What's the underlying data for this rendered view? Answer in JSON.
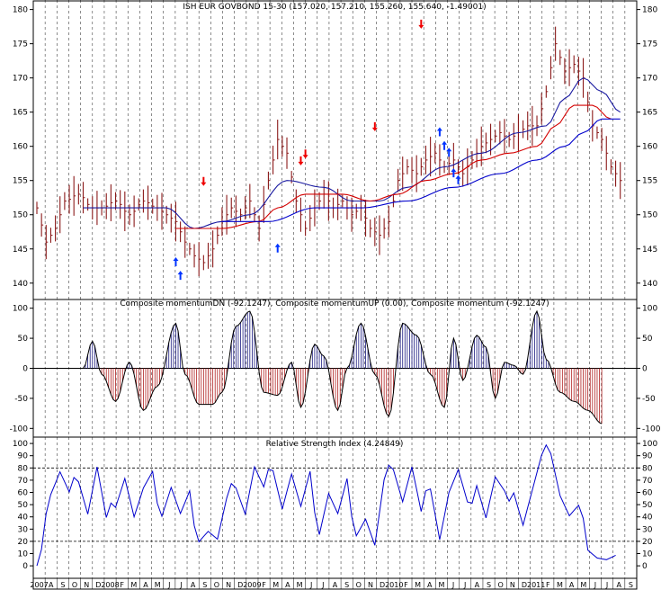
{
  "colors": {
    "background": "#ffffff",
    "frame": "#000000",
    "grid": "#000000",
    "price_bar": "#8b1a1a",
    "ma_fast": "#d40000",
    "ma_slow": "#1a1aa0",
    "ma_lower": "#0000cc",
    "momentum_up": "#1a1a80",
    "momentum_down": "#b02020",
    "rsi": "#0000cc",
    "signal_up": "#0033ff",
    "signal_down": "#ee0000"
  },
  "x_axis": {
    "labels": [
      "2007",
      "A",
      "S",
      "O",
      "N",
      "D",
      "2008",
      "F",
      "M",
      "A",
      "M",
      "J",
      "J",
      "A",
      "S",
      "O",
      "N",
      "D",
      "2009",
      "F",
      "M",
      "A",
      "M",
      "J",
      "J",
      "A",
      "S",
      "O",
      "N",
      "D",
      "2010",
      "F",
      "M",
      "A",
      "M",
      "J",
      "J",
      "A",
      "S",
      "O",
      "N",
      "D",
      "2011",
      "F",
      "M",
      "A",
      "M",
      "J",
      "J",
      "A",
      "S"
    ]
  },
  "chart_data": [
    {
      "id": "price",
      "type": "bar",
      "title": "ISH EUR GOVBOND 15-30 (157.020, 157.210, 155.260, 155.640, -1.49001)",
      "ylim": [
        138,
        181
      ],
      "yticks": [
        140,
        145,
        150,
        155,
        160,
        165,
        170,
        175,
        180
      ],
      "ytick_labels": [
        "140",
        "145",
        "150",
        "155",
        "160",
        "165",
        "170",
        "175",
        "180"
      ],
      "anchors": {
        "close": [
          [
            0,
            151
          ],
          [
            2,
            146
          ],
          [
            4,
            148
          ],
          [
            6,
            152
          ],
          [
            9,
            153
          ],
          [
            12,
            151
          ],
          [
            14,
            151
          ],
          [
            17,
            152
          ],
          [
            20,
            150
          ],
          [
            23,
            152
          ],
          [
            26,
            151
          ],
          [
            28,
            150
          ],
          [
            30,
            149
          ],
          [
            32,
            146
          ],
          [
            34,
            144
          ],
          [
            36,
            143
          ],
          [
            38,
            145
          ],
          [
            40,
            149
          ],
          [
            42,
            151
          ],
          [
            44,
            150
          ],
          [
            46,
            152
          ],
          [
            48,
            148
          ],
          [
            50,
            155
          ],
          [
            52,
            161
          ],
          [
            54,
            159
          ],
          [
            56,
            152
          ],
          [
            58,
            148
          ],
          [
            60,
            151
          ],
          [
            62,
            153
          ],
          [
            64,
            151
          ],
          [
            66,
            152
          ],
          [
            68,
            150
          ],
          [
            70,
            151
          ],
          [
            72,
            148
          ],
          [
            74,
            147
          ],
          [
            76,
            149
          ],
          [
            78,
            155
          ],
          [
            80,
            157
          ],
          [
            82,
            156
          ],
          [
            84,
            158
          ],
          [
            86,
            159
          ],
          [
            88,
            157
          ],
          [
            90,
            158
          ],
          [
            92,
            156
          ],
          [
            94,
            158
          ],
          [
            96,
            160
          ],
          [
            98,
            161
          ],
          [
            100,
            162
          ],
          [
            102,
            161
          ],
          [
            104,
            162
          ],
          [
            106,
            163
          ],
          [
            108,
            163
          ],
          [
            110,
            168
          ],
          [
            112,
            175
          ],
          [
            114,
            171
          ],
          [
            116,
            172
          ],
          [
            118,
            170
          ],
          [
            120,
            163
          ],
          [
            122,
            161
          ],
          [
            124,
            157
          ],
          [
            126,
            155
          ]
        ]
      },
      "ma_fast": [
        [
          30,
          148
        ],
        [
          40,
          148
        ],
        [
          48,
          149
        ],
        [
          52,
          151
        ],
        [
          58,
          153
        ],
        [
          66,
          153
        ],
        [
          72,
          152
        ],
        [
          78,
          153
        ],
        [
          84,
          155
        ],
        [
          90,
          156
        ],
        [
          96,
          158
        ],
        [
          102,
          159
        ],
        [
          108,
          160
        ],
        [
          112,
          163
        ],
        [
          116,
          166
        ],
        [
          120,
          166
        ],
        [
          124,
          164
        ]
      ],
      "ma_slow": [
        [
          10,
          151
        ],
        [
          20,
          151
        ],
        [
          28,
          151
        ],
        [
          34,
          148
        ],
        [
          40,
          149
        ],
        [
          46,
          150
        ],
        [
          54,
          155
        ],
        [
          62,
          154
        ],
        [
          68,
          152
        ],
        [
          74,
          152
        ],
        [
          80,
          154
        ],
        [
          88,
          157
        ],
        [
          96,
          159
        ],
        [
          104,
          162
        ],
        [
          110,
          163
        ],
        [
          114,
          167
        ],
        [
          118,
          170
        ],
        [
          122,
          168
        ],
        [
          126,
          165
        ]
      ],
      "ma_lower": [
        [
          40,
          149
        ],
        [
          50,
          149
        ],
        [
          60,
          151
        ],
        [
          70,
          151
        ],
        [
          80,
          152
        ],
        [
          90,
          154
        ],
        [
          100,
          156
        ],
        [
          108,
          158
        ],
        [
          114,
          160
        ],
        [
          118,
          162
        ],
        [
          122,
          164
        ],
        [
          126,
          164
        ]
      ],
      "signals_up": [
        [
          30,
          143
        ],
        [
          31,
          141
        ],
        [
          52,
          145
        ],
        [
          87,
          162
        ],
        [
          88,
          160
        ],
        [
          89,
          159
        ],
        [
          90,
          156
        ],
        [
          91,
          155
        ]
      ],
      "signals_down": [
        [
          36,
          155
        ],
        [
          57,
          158
        ],
        [
          58,
          159
        ],
        [
          73,
          163
        ],
        [
          83,
          178
        ]
      ]
    },
    {
      "id": "momentum",
      "type": "bar",
      "title": "Composite momentumDN (-92.1247), Composite momentumUP (0.00), Composite momentum (-92.1247)",
      "ylim": [
        -110,
        110
      ],
      "yticks": [
        -100,
        -50,
        0,
        50,
        100
      ],
      "ytick_labels": [
        "-100",
        "-50",
        "0",
        "50",
        "100"
      ],
      "anchors": [
        [
          0,
          0
        ],
        [
          10,
          0
        ],
        [
          12,
          45
        ],
        [
          14,
          -10
        ],
        [
          17,
          -55
        ],
        [
          20,
          10
        ],
        [
          23,
          -70
        ],
        [
          26,
          -30
        ],
        [
          30,
          75
        ],
        [
          32,
          -10
        ],
        [
          35,
          -60
        ],
        [
          38,
          -60
        ],
        [
          40,
          -40
        ],
        [
          43,
          70
        ],
        [
          46,
          95
        ],
        [
          49,
          -40
        ],
        [
          52,
          -45
        ],
        [
          55,
          10
        ],
        [
          57,
          -65
        ],
        [
          60,
          40
        ],
        [
          62,
          20
        ],
        [
          65,
          -70
        ],
        [
          67,
          0
        ],
        [
          70,
          75
        ],
        [
          73,
          -10
        ],
        [
          76,
          -80
        ],
        [
          79,
          75
        ],
        [
          82,
          55
        ],
        [
          85,
          -10
        ],
        [
          88,
          -65
        ],
        [
          90,
          50
        ],
        [
          92,
          -20
        ],
        [
          95,
          55
        ],
        [
          97,
          35
        ],
        [
          99,
          -50
        ],
        [
          101,
          10
        ],
        [
          103,
          5
        ],
        [
          105,
          -10
        ],
        [
          108,
          95
        ],
        [
          110,
          15
        ],
        [
          113,
          -40
        ],
        [
          116,
          -55
        ],
        [
          119,
          -70
        ],
        [
          122,
          -92
        ]
      ]
    },
    {
      "id": "rsi",
      "type": "line",
      "title": "Relative Strength Index (4.24849)",
      "ylim": [
        -8,
        103
      ],
      "yticks": [
        0,
        10,
        20,
        30,
        40,
        50,
        60,
        70,
        80,
        90,
        100
      ],
      "ytick_labels": [
        "0",
        "10",
        "20",
        "30",
        "40",
        "50",
        "60",
        "70",
        "80",
        "90",
        "100"
      ],
      "levels": [
        20,
        80
      ],
      "anchors": [
        [
          0,
          5
        ],
        [
          3,
          60
        ],
        [
          5,
          75
        ],
        [
          7,
          55
        ],
        [
          9,
          75
        ],
        [
          11,
          45
        ],
        [
          13,
          80
        ],
        [
          15,
          35
        ],
        [
          17,
          55
        ],
        [
          19,
          75
        ],
        [
          21,
          40
        ],
        [
          23,
          60
        ],
        [
          25,
          70
        ],
        [
          27,
          45
        ],
        [
          29,
          65
        ],
        [
          31,
          40
        ],
        [
          33,
          55
        ],
        [
          35,
          25
        ],
        [
          37,
          30
        ],
        [
          39,
          20
        ],
        [
          41,
          50
        ],
        [
          43,
          70
        ],
        [
          45,
          45
        ],
        [
          47,
          80
        ],
        [
          49,
          60
        ],
        [
          51,
          85
        ],
        [
          53,
          50
        ],
        [
          55,
          75
        ],
        [
          57,
          45
        ],
        [
          59,
          70
        ],
        [
          61,
          30
        ],
        [
          63,
          60
        ],
        [
          65,
          40
        ],
        [
          67,
          65
        ],
        [
          69,
          30
        ],
        [
          71,
          40
        ],
        [
          73,
          15
        ],
        [
          75,
          65
        ],
        [
          77,
          85
        ],
        [
          79,
          55
        ],
        [
          81,
          80
        ],
        [
          83,
          40
        ],
        [
          85,
          70
        ],
        [
          87,
          25
        ],
        [
          89,
          60
        ],
        [
          91,
          75
        ],
        [
          93,
          45
        ],
        [
          95,
          70
        ],
        [
          97,
          40
        ],
        [
          99,
          70
        ],
        [
          101,
          55
        ],
        [
          103,
          65
        ],
        [
          105,
          35
        ],
        [
          107,
          60
        ],
        [
          109,
          85
        ],
        [
          111,
          98
        ],
        [
          113,
          60
        ],
        [
          115,
          40
        ],
        [
          117,
          45
        ],
        [
          119,
          20
        ],
        [
          121,
          10
        ],
        [
          123,
          5
        ],
        [
          125,
          5
        ]
      ]
    }
  ]
}
